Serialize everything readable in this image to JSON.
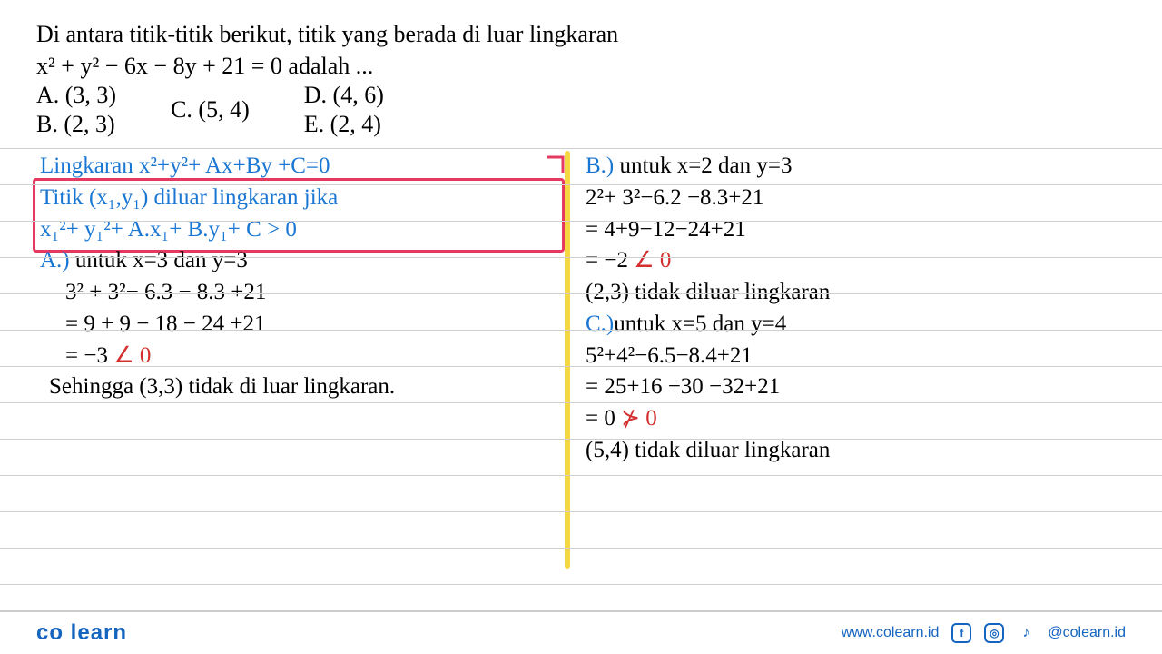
{
  "question": {
    "line1": "Di antara titik-titik berikut, titik yang berada di luar lingkaran",
    "equation": "x² + y² − 6x − 8y  + 21 = 0 adalah ...",
    "options": {
      "A": "A. (3, 3)",
      "B": "B. (2, 3)",
      "C": "C. (5, 4)",
      "D": "D. (4, 6)",
      "E": "E. (2, 4)"
    }
  },
  "handwriting": {
    "left": {
      "l1": "Lingkaran  x²+y²+ Ax+By +C=0",
      "l2": "Titik (x₁,y₁) diluar lingkaran jika",
      "l3": "x₁²+ y₁²+ A.x₁+ B.y₁+ C > 0",
      "l4a": "A.)",
      "l4b": " untuk x=3  dan y=3",
      "l5": "3² + 3²− 6.3 − 8.3 +21",
      "l6": "= 9 + 9 − 18 − 24 +21",
      "l7a": "= −3 ",
      "l7b": "∠ 0",
      "l8": "Sehingga (3,3) tidak di luar lingkaran."
    },
    "right": {
      "r1a": "B.)",
      "r1b": " untuk x=2 dan y=3",
      "r2": "2²+ 3²−6.2 −8.3+21",
      "r3": "= 4+9−12−24+21",
      "r4a": "= −2 ",
      "r4b": "∠ 0",
      "r5": "(2,3) tidak diluar lingkaran",
      "r6a": "C.)",
      "r6b": "untuk x=5 dan y=4",
      "r7": "5²+4²−6.5−8.4+21",
      "r8": "= 25+16 −30 −32+21",
      "r9a": "= 0  ",
      "r9b": "⊁ 0",
      "r10": "(5,4) tidak diluar lingkaran"
    }
  },
  "footer": {
    "brand": "co learn",
    "url": "www.colearn.id",
    "handle": "@colearn.id"
  },
  "colors": {
    "blue": "#1976d2",
    "red": "#d32f2f",
    "box": "#e53962",
    "divider": "#f5d742",
    "rule": "#d0d0d0",
    "brand": "#1565c0"
  },
  "rules": {
    "start": 163,
    "step": 40,
    "count": 13
  }
}
